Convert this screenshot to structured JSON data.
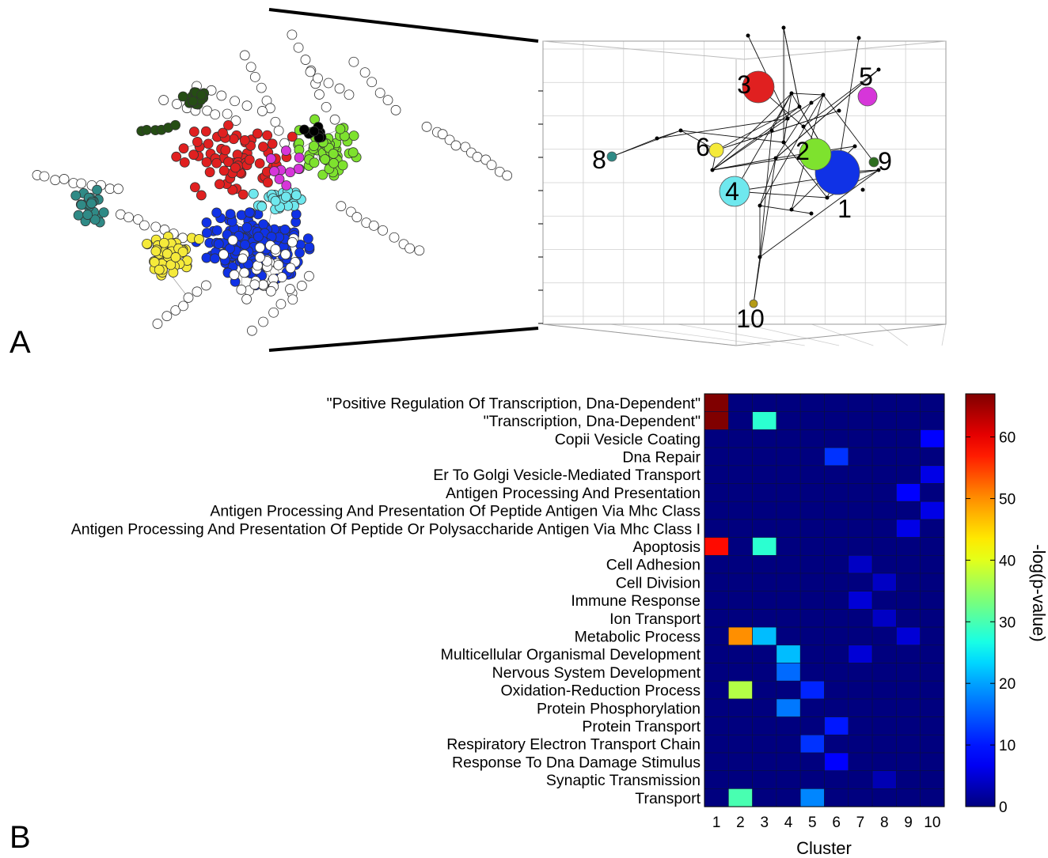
{
  "panels": {
    "a_label": "A",
    "b_label": "B"
  },
  "colors": {
    "white_node": "#ffffff",
    "red": "#e02020",
    "green": "#7ee22e",
    "blue": "#1032e6",
    "yellow": "#f5ea3a",
    "cyan": "#6fe8ee",
    "teal": "#2f8a86",
    "dark_green": "#254d14",
    "magenta": "#d636d9",
    "olive": "#b59b16",
    "black": "#000000"
  },
  "chart_data": [
    {
      "type": "scatter",
      "subtype": "3d-cluster-network",
      "nodes": [
        {
          "label": "1",
          "color": "#1032e6",
          "size": "largest"
        },
        {
          "label": "2",
          "color": "#7ee22e",
          "size": "large"
        },
        {
          "label": "3",
          "color": "#e02020",
          "size": "large"
        },
        {
          "label": "4",
          "color": "#6fe8ee",
          "size": "medium"
        },
        {
          "label": "5",
          "color": "#d636d9",
          "size": "small"
        },
        {
          "label": "6",
          "color": "#f5ea3a",
          "size": "small"
        },
        {
          "label": "8",
          "color": "#2f8a86",
          "size": "small"
        },
        {
          "label": "9",
          "color": "#2d6e1f",
          "size": "small"
        },
        {
          "label": "10",
          "color": "#b59b16",
          "size": "small"
        }
      ],
      "grid": true
    },
    {
      "type": "heatmap",
      "categories": [
        "1",
        "2",
        "3",
        "4",
        "5",
        "6",
        "7",
        "8",
        "9",
        "10"
      ],
      "xlabel": "Cluster",
      "colorbar_label": "-log(p-value)",
      "colorbar_ticks": [
        0,
        10,
        20,
        30,
        40,
        50,
        60
      ],
      "zlim": [
        0,
        67
      ],
      "rows": [
        "\"Positive Regulation Of Transcription, Dna-Dependent\"",
        "\"Transcription, Dna-Dependent\"",
        "Copii Vesicle Coating",
        "Dna Repair",
        "Er To Golgi Vesicle-Mediated Transport",
        "Antigen Processing And Presentation",
        "Antigen Processing And Presentation Of Peptide Antigen Via Mhc Class",
        "Antigen Processing And Presentation Of Peptide Or Polysaccharide Antigen Via Mhc Class I",
        "Apoptosis",
        "Cell Adhesion",
        "Cell Division",
        "Immune Response",
        "Ion Transport",
        "Metabolic Process",
        "Multicellular Organismal Development",
        "Nervous System Development",
        "Oxidation-Reduction Process",
        "Protein Phosphorylation",
        "Protein Transport",
        "Respiratory Electron Transport Chain",
        "Response To Dna Damage Stimulus",
        "Synaptic Transmission",
        "Transport"
      ],
      "values": [
        [
          67,
          0,
          0,
          0,
          0,
          0,
          0,
          0,
          0,
          0
        ],
        [
          67,
          0,
          28,
          0,
          0,
          0,
          0,
          0,
          0,
          0
        ],
        [
          0,
          0,
          0,
          0,
          0,
          0,
          0,
          0,
          0,
          8
        ],
        [
          0,
          0,
          0,
          0,
          0,
          12,
          0,
          0,
          0,
          0
        ],
        [
          0,
          0,
          0,
          0,
          0,
          0,
          0,
          0,
          0,
          6
        ],
        [
          0,
          0,
          0,
          0,
          0,
          0,
          0,
          0,
          8,
          0
        ],
        [
          0,
          0,
          0,
          0,
          0,
          0,
          0,
          0,
          0,
          6
        ],
        [
          0,
          0,
          0,
          0,
          0,
          0,
          0,
          0,
          6,
          0
        ],
        [
          58,
          0,
          28,
          0,
          0,
          0,
          0,
          0,
          0,
          0
        ],
        [
          0,
          0,
          0,
          0,
          0,
          0,
          4,
          0,
          0,
          0
        ],
        [
          0,
          0,
          0,
          0,
          0,
          0,
          0,
          4,
          0,
          0
        ],
        [
          0,
          0,
          0,
          0,
          0,
          0,
          5,
          0,
          0,
          0
        ],
        [
          0,
          0,
          0,
          0,
          0,
          0,
          0,
          4,
          0,
          0
        ],
        [
          0,
          50,
          22,
          0,
          0,
          0,
          0,
          0,
          5,
          0
        ],
        [
          0,
          0,
          0,
          22,
          0,
          0,
          5,
          0,
          0,
          0
        ],
        [
          0,
          0,
          0,
          16,
          0,
          0,
          0,
          0,
          0,
          0
        ],
        [
          0,
          37,
          0,
          0,
          11,
          0,
          0,
          0,
          0,
          0
        ],
        [
          0,
          0,
          0,
          17,
          0,
          0,
          0,
          0,
          0,
          0
        ],
        [
          0,
          0,
          0,
          0,
          0,
          10,
          0,
          0,
          0,
          0
        ],
        [
          0,
          0,
          0,
          0,
          12,
          0,
          0,
          0,
          0,
          0
        ],
        [
          0,
          0,
          0,
          0,
          0,
          8,
          0,
          0,
          0,
          0
        ],
        [
          0,
          0,
          0,
          0,
          0,
          0,
          0,
          3,
          0,
          0
        ],
        [
          0,
          30,
          0,
          0,
          18,
          0,
          0,
          0,
          0,
          0
        ]
      ]
    }
  ]
}
